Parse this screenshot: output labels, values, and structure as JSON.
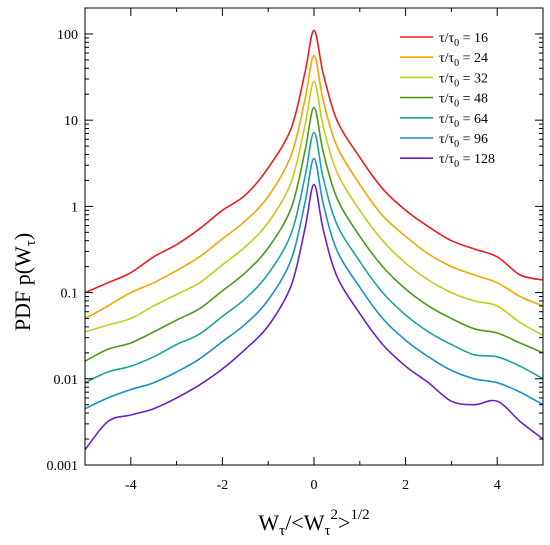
{
  "chart_data": {
    "type": "line",
    "title": "",
    "xlabel": {
      "main": "W",
      "sub": "τ",
      "rest": "/<W",
      "sub2": "τ",
      "sup": "2",
      "close": ">",
      "exp": "1/2"
    },
    "ylabel": {
      "main": "PDF p(W",
      "sub": "τ",
      "close": ")"
    },
    "x_range": [
      -5,
      5
    ],
    "y_range": [
      0.001,
      200
    ],
    "y_scale": "log",
    "x_ticks": [
      {
        "value": -4,
        "label": "-4"
      },
      {
        "value": -2,
        "label": "-2"
      },
      {
        "value": 0,
        "label": "0"
      },
      {
        "value": 2,
        "label": "2"
      },
      {
        "value": 4,
        "label": "4"
      }
    ],
    "y_ticks": [
      {
        "value": 0.001,
        "label": "0.001"
      },
      {
        "value": 0.01,
        "label": "0.01"
      },
      {
        "value": 0.1,
        "label": "0.1"
      },
      {
        "value": 1,
        "label": "1"
      },
      {
        "value": 10,
        "label": "10"
      },
      {
        "value": 100,
        "label": "100"
      }
    ],
    "legend_position": "top-right",
    "legend_prefix": "τ/τ",
    "legend_sub": "0",
    "series": [
      {
        "name": "16",
        "color": "#ee1c1c",
        "x": [
          -5,
          -4.5,
          -4,
          -3.5,
          -3,
          -2.5,
          -2,
          -1.5,
          -1,
          -0.5,
          -0.2,
          0,
          0.2,
          0.5,
          1,
          1.5,
          2,
          2.5,
          3,
          3.5,
          4,
          4.5,
          5
        ],
        "y": [
          0.1,
          0.13,
          0.17,
          0.26,
          0.36,
          0.55,
          0.9,
          1.35,
          2.8,
          8,
          35,
          110,
          35,
          10,
          3.7,
          1.6,
          0.9,
          0.58,
          0.4,
          0.32,
          0.26,
          0.16,
          0.14
        ]
      },
      {
        "name": "24",
        "color": "#f7a400",
        "x": [
          -5,
          -4.5,
          -4,
          -3.5,
          -3,
          -2.5,
          -2,
          -1.5,
          -1,
          -0.5,
          -0.2,
          0,
          0.2,
          0.5,
          1,
          1.5,
          2,
          2.5,
          3,
          3.5,
          4,
          4.5,
          5
        ],
        "y": [
          0.05,
          0.07,
          0.1,
          0.13,
          0.18,
          0.26,
          0.42,
          0.68,
          1.3,
          3.9,
          17,
          56,
          17,
          5,
          1.8,
          0.78,
          0.45,
          0.28,
          0.2,
          0.16,
          0.13,
          0.09,
          0.07
        ]
      },
      {
        "name": "32",
        "color": "#c4cc1a",
        "x": [
          -5,
          -4.5,
          -4,
          -3.5,
          -3,
          -2.5,
          -2,
          -1.5,
          -1,
          -0.5,
          -0.2,
          0,
          0.2,
          0.5,
          1,
          1.5,
          2,
          2.5,
          3,
          3.5,
          4,
          4.5,
          5
        ],
        "y": [
          0.035,
          0.042,
          0.05,
          0.07,
          0.095,
          0.13,
          0.21,
          0.34,
          0.65,
          1.9,
          8.5,
          28,
          8.5,
          2.5,
          0.9,
          0.4,
          0.22,
          0.14,
          0.1,
          0.08,
          0.07,
          0.045,
          0.032
        ]
      },
      {
        "name": "48",
        "color": "#4c9a18",
        "x": [
          -5,
          -4.5,
          -4,
          -3.5,
          -3,
          -2.5,
          -2,
          -1.5,
          -1,
          -0.5,
          -0.2,
          0,
          0.2,
          0.5,
          1,
          1.5,
          2,
          2.5,
          3,
          3.5,
          4,
          4.5,
          5
        ],
        "y": [
          0.016,
          0.022,
          0.026,
          0.035,
          0.048,
          0.065,
          0.105,
          0.17,
          0.33,
          0.95,
          4.3,
          14,
          4.3,
          1.25,
          0.45,
          0.2,
          0.11,
          0.07,
          0.05,
          0.038,
          0.034,
          0.026,
          0.02
        ]
      },
      {
        "name": "64",
        "color": "#1aa59a",
        "x": [
          -5,
          -4.5,
          -4,
          -3.5,
          -3,
          -2.5,
          -2,
          -1.5,
          -1,
          -0.5,
          -0.2,
          0,
          0.2,
          0.5,
          1,
          1.5,
          2,
          2.5,
          3,
          3.5,
          4,
          4.5,
          5
        ],
        "y": [
          0.009,
          0.012,
          0.014,
          0.018,
          0.025,
          0.033,
          0.053,
          0.085,
          0.165,
          0.48,
          2.15,
          7.2,
          2.15,
          0.62,
          0.23,
          0.1,
          0.055,
          0.035,
          0.025,
          0.019,
          0.018,
          0.014,
          0.01
        ]
      },
      {
        "name": "96",
        "color": "#1a8fd0",
        "x": [
          -5,
          -4.5,
          -4,
          -3.5,
          -3,
          -2.5,
          -2,
          -1.5,
          -1,
          -0.5,
          -0.2,
          0,
          0.2,
          0.5,
          1,
          1.5,
          2,
          2.5,
          3,
          3.5,
          4,
          4.5,
          5
        ],
        "y": [
          0.0045,
          0.006,
          0.0075,
          0.009,
          0.012,
          0.017,
          0.027,
          0.043,
          0.082,
          0.24,
          1.08,
          3.6,
          1.08,
          0.31,
          0.115,
          0.05,
          0.028,
          0.018,
          0.0125,
          0.01,
          0.009,
          0.007,
          0.005
        ]
      },
      {
        "name": "128",
        "color": "#6b1fcc",
        "x": [
          -5,
          -4.5,
          -4,
          -3.5,
          -3,
          -2.5,
          -2,
          -1.5,
          -1,
          -0.5,
          -0.2,
          0,
          0.2,
          0.5,
          1,
          1.5,
          2,
          2.5,
          3,
          3.5,
          4,
          4.5,
          5
        ],
        "y": [
          0.0015,
          0.0032,
          0.0038,
          0.0045,
          0.006,
          0.0085,
          0.013,
          0.022,
          0.041,
          0.12,
          0.54,
          1.8,
          0.54,
          0.155,
          0.057,
          0.025,
          0.014,
          0.009,
          0.0055,
          0.005,
          0.0055,
          0.0032,
          0.002
        ]
      }
    ]
  }
}
